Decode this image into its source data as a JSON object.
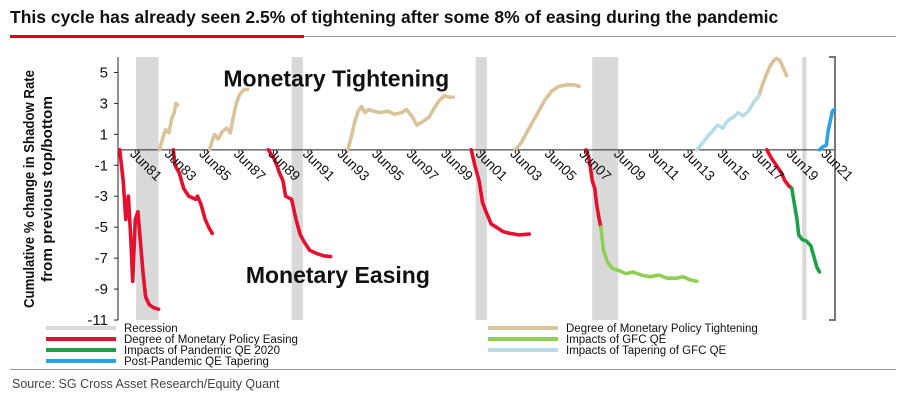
{
  "header": {
    "title": "This cycle has already seen 2.5% of tightening after some 8% of easing during the pandemic"
  },
  "footer": {
    "source": "Source: SG Cross Asset Research/Equity Quant"
  },
  "chart_data": {
    "type": "line",
    "title": "",
    "xlabel": "",
    "ylabel_lines": [
      "Cumulative % change in Shadow Rate",
      "from previous top/bottom"
    ],
    "ylim": [
      -11,
      6
    ],
    "xlim": [
      1980.5,
      2022
    ],
    "y_ticks": [
      5,
      3,
      1,
      -1,
      -3,
      -5,
      -7,
      -9,
      -11
    ],
    "x_ticks": [
      {
        "label": "Jun81",
        "x": 1981.5
      },
      {
        "label": "Jun83",
        "x": 1983.5
      },
      {
        "label": "Jun85",
        "x": 1985.5
      },
      {
        "label": "Jun87",
        "x": 1987.5
      },
      {
        "label": "Jun89",
        "x": 1989.5
      },
      {
        "label": "Jun91",
        "x": 1991.5
      },
      {
        "label": "Jun93",
        "x": 1993.5
      },
      {
        "label": "Jun95",
        "x": 1995.5
      },
      {
        "label": "Jun97",
        "x": 1997.5
      },
      {
        "label": "Jun99",
        "x": 1999.5
      },
      {
        "label": "Jun01",
        "x": 2001.5
      },
      {
        "label": "Jun03",
        "x": 2003.5
      },
      {
        "label": "Jun05",
        "x": 2005.5
      },
      {
        "label": "Jun07",
        "x": 2007.5
      },
      {
        "label": "Jun09",
        "x": 2009.5
      },
      {
        "label": "Jun11",
        "x": 2011.5
      },
      {
        "label": "Jun13",
        "x": 2013.5
      },
      {
        "label": "Jun15",
        "x": 2015.5
      },
      {
        "label": "Jun17",
        "x": 2017.5
      },
      {
        "label": "Jun19",
        "x": 2019.5
      },
      {
        "label": "Jun21",
        "x": 2021.5
      }
    ],
    "annotations": [
      {
        "text": "Monetary Tightening",
        "x": 1986.6,
        "y": 4.1
      },
      {
        "text": "Monetary Easing",
        "x": 1987.9,
        "y": -8.6
      }
    ],
    "recessions": [
      [
        1981.55,
        1982.85
      ],
      [
        1990.55,
        1991.2
      ],
      [
        2001.2,
        2001.85
      ],
      [
        2007.95,
        2009.45
      ],
      [
        2020.1,
        2020.35
      ]
    ],
    "colors": {
      "recession": "#d9d9d9",
      "easing": "#e3112f",
      "tightening": "#d9c39a",
      "gfc_qe": "#8fd053",
      "tapering": "#b9dde6",
      "pandemic_qe": "#1ea04a",
      "post_pandemic": "#2aa3e6"
    },
    "series": [
      {
        "name": "Degree of Monetary Policy Easing",
        "color_key": "easing",
        "segments": [
          [
            [
              1980.6,
              0
            ],
            [
              1980.8,
              -2
            ],
            [
              1980.95,
              -4.5
            ],
            [
              1981.1,
              -3
            ],
            [
              1981.25,
              -6
            ],
            [
              1981.35,
              -8.5
            ],
            [
              1981.5,
              -4.5
            ],
            [
              1981.65,
              -4
            ],
            [
              1981.8,
              -6
            ],
            [
              1981.95,
              -8
            ],
            [
              1982.1,
              -9.5
            ],
            [
              1982.3,
              -10
            ],
            [
              1982.55,
              -10.2
            ],
            [
              1982.85,
              -10.3
            ]
          ],
          [
            [
              1983.7,
              0
            ],
            [
              1983.8,
              -1
            ],
            [
              1984.05,
              -1.5
            ],
            [
              1984.3,
              -2.5
            ],
            [
              1984.6,
              -3
            ],
            [
              1985.0,
              -3.2
            ],
            [
              1985.1,
              -3
            ],
            [
              1985.3,
              -3.5
            ],
            [
              1985.55,
              -4.5
            ],
            [
              1985.75,
              -5
            ],
            [
              1985.95,
              -5.4
            ]
          ],
          [
            [
              1989.2,
              0
            ],
            [
              1989.5,
              -0.5
            ],
            [
              1989.7,
              -1
            ],
            [
              1989.85,
              -1.5
            ],
            [
              1990.05,
              -2
            ],
            [
              1990.2,
              -3
            ],
            [
              1990.55,
              -3.2
            ],
            [
              1990.8,
              -4.5
            ],
            [
              1991.05,
              -5.5
            ],
            [
              1991.3,
              -6
            ],
            [
              1991.6,
              -6.5
            ],
            [
              1992.0,
              -6.7
            ],
            [
              1992.4,
              -6.85
            ],
            [
              1992.8,
              -6.9
            ]
          ],
          [
            [
              2000.95,
              0
            ],
            [
              2001.15,
              -1
            ],
            [
              2001.4,
              -2
            ],
            [
              2001.6,
              -3.4
            ],
            [
              2001.8,
              -4
            ],
            [
              2002.1,
              -4.8
            ],
            [
              2002.4,
              -5
            ],
            [
              2002.8,
              -5.3
            ],
            [
              2003.2,
              -5.4
            ],
            [
              2003.7,
              -5.5
            ],
            [
              2004.3,
              -5.45
            ]
          ],
          [
            [
              2007.6,
              0
            ],
            [
              2007.75,
              -0.5
            ],
            [
              2007.85,
              -1.2
            ],
            [
              2007.95,
              -2
            ],
            [
              2008.1,
              -2.5
            ],
            [
              2008.2,
              -3.5
            ],
            [
              2008.35,
              -4.5
            ],
            [
              2008.45,
              -5
            ]
          ],
          [
            [
              2018.05,
              0
            ],
            [
              2018.3,
              -0.5
            ],
            [
              2018.6,
              -1
            ],
            [
              2018.9,
              -1.5
            ],
            [
              2019.1,
              -2
            ],
            [
              2019.3,
              -2.3
            ],
            [
              2019.5,
              -2.5
            ]
          ]
        ]
      },
      {
        "name": "Degree of Monetary Policy Tightening",
        "color_key": "tightening",
        "segments": [
          [
            [
              1982.9,
              0
            ],
            [
              1983.05,
              0.6
            ],
            [
              1983.25,
              1.3
            ],
            [
              1983.45,
              1.1
            ],
            [
              1983.6,
              2
            ],
            [
              1983.75,
              2.4
            ],
            [
              1983.85,
              3
            ],
            [
              1983.95,
              2.9
            ]
          ],
          [
            [
              1985.8,
              0
            ],
            [
              1985.95,
              0.6
            ],
            [
              1986.1,
              1
            ],
            [
              1986.3,
              0.7
            ],
            [
              1986.55,
              1.2
            ],
            [
              1986.8,
              1.4
            ],
            [
              1987.0,
              1.1
            ],
            [
              1987.15,
              2
            ],
            [
              1987.35,
              3
            ],
            [
              1987.55,
              3.6
            ],
            [
              1987.8,
              3.9
            ],
            [
              1988.0,
              3.9
            ]
          ],
          [
            [
              1993.8,
              0
            ],
            [
              1994.0,
              0.8
            ],
            [
              1994.2,
              1.8
            ],
            [
              1994.4,
              2.5
            ],
            [
              1994.6,
              2.8
            ],
            [
              1994.8,
              2.4
            ],
            [
              1995.0,
              2.6
            ],
            [
              1995.3,
              2.5
            ],
            [
              1995.7,
              2.4
            ],
            [
              1996.1,
              2.5
            ],
            [
              1996.5,
              2.3
            ],
            [
              1996.9,
              2.4
            ],
            [
              1997.2,
              2.6
            ],
            [
              1997.5,
              2.2
            ],
            [
              1997.8,
              1.6
            ],
            [
              1998.1,
              1.8
            ],
            [
              1998.5,
              2.1
            ],
            [
              1998.8,
              2.7
            ],
            [
              1999.1,
              3.2
            ],
            [
              1999.4,
              3.5
            ],
            [
              1999.7,
              3.4
            ],
            [
              1999.9,
              3.4
            ]
          ],
          [
            [
              2003.5,
              0
            ],
            [
              2003.8,
              0.4
            ],
            [
              2004.1,
              1
            ],
            [
              2004.4,
              1.6
            ],
            [
              2004.8,
              2.4
            ],
            [
              2005.2,
              3.2
            ],
            [
              2005.6,
              3.8
            ],
            [
              2006.0,
              4.1
            ],
            [
              2006.5,
              4.2
            ],
            [
              2006.9,
              4.2
            ],
            [
              2007.2,
              4.1
            ]
          ],
          [
            [
              2017.6,
              3.5
            ],
            [
              2017.8,
              4.2
            ],
            [
              2018.0,
              4.8
            ],
            [
              2018.2,
              5.3
            ],
            [
              2018.4,
              5.7
            ],
            [
              2018.6,
              5.9
            ],
            [
              2018.8,
              5.8
            ],
            [
              2019.0,
              5.3
            ],
            [
              2019.2,
              4.8
            ]
          ]
        ]
      },
      {
        "name": "Impacts of GFC QE",
        "color_key": "gfc_qe",
        "segments": [
          [
            [
              2008.45,
              -5
            ],
            [
              2008.6,
              -6.5
            ],
            [
              2008.85,
              -7.3
            ],
            [
              2009.15,
              -7.7
            ],
            [
              2009.5,
              -7.8
            ],
            [
              2009.9,
              -8
            ],
            [
              2010.3,
              -7.9
            ],
            [
              2010.8,
              -8.1
            ],
            [
              2011.3,
              -8.2
            ],
            [
              2011.8,
              -8.1
            ],
            [
              2012.3,
              -8.3
            ],
            [
              2012.8,
              -8.3
            ],
            [
              2013.2,
              -8.2
            ],
            [
              2013.6,
              -8.4
            ],
            [
              2014.0,
              -8.5
            ]
          ]
        ]
      },
      {
        "name": "Impacts of Tapering of GFC QE",
        "color_key": "tapering",
        "segments": [
          [
            [
              2014.0,
              0
            ],
            [
              2014.3,
              0.4
            ],
            [
              2014.6,
              0.8
            ],
            [
              2014.9,
              1.2
            ],
            [
              2015.2,
              1.6
            ],
            [
              2015.5,
              1.4
            ],
            [
              2015.8,
              1.9
            ],
            [
              2016.1,
              2.1
            ],
            [
              2016.4,
              2.4
            ],
            [
              2016.7,
              2.2
            ],
            [
              2017.0,
              2.5
            ],
            [
              2017.3,
              3.1
            ],
            [
              2017.6,
              3.5
            ]
          ]
        ]
      },
      {
        "name": "Impacts of Pandemic QE 2020",
        "color_key": "pandemic_qe",
        "segments": [
          [
            [
              2019.5,
              -2.5
            ],
            [
              2019.65,
              -3.5
            ],
            [
              2019.8,
              -4.5
            ],
            [
              2019.9,
              -5.5
            ],
            [
              2020.1,
              -5.8
            ],
            [
              2020.35,
              -5.9
            ],
            [
              2020.6,
              -6.2
            ],
            [
              2020.8,
              -7
            ],
            [
              2020.95,
              -7.6
            ],
            [
              2021.1,
              -7.9
            ]
          ]
        ]
      },
      {
        "name": "Post-Pandemic QE Tapering",
        "color_key": "post_pandemic",
        "segments": [
          [
            [
              2021.1,
              0
            ],
            [
              2021.3,
              0.2
            ],
            [
              2021.5,
              0.3
            ],
            [
              2021.6,
              1.2
            ],
            [
              2021.75,
              2
            ],
            [
              2021.85,
              2.5
            ],
            [
              2021.95,
              2.6
            ]
          ]
        ]
      }
    ],
    "legend": [
      {
        "label": "Recession",
        "color_key": "recession"
      },
      {
        "label": "Degree of Monetary Policy Tightening",
        "color_key": "tightening"
      },
      {
        "label": "Degree of Monetary Policy Easing",
        "color_key": "easing"
      },
      {
        "label": "Impacts of GFC QE",
        "color_key": "gfc_qe"
      },
      {
        "label": "Impacts of Pandemic QE 2020",
        "color_key": "pandemic_qe"
      },
      {
        "label": "Impacts of Tapering of GFC QE",
        "color_key": "tapering"
      },
      {
        "label": "Post-Pandemic QE Tapering",
        "color_key": "post_pandemic"
      }
    ]
  }
}
